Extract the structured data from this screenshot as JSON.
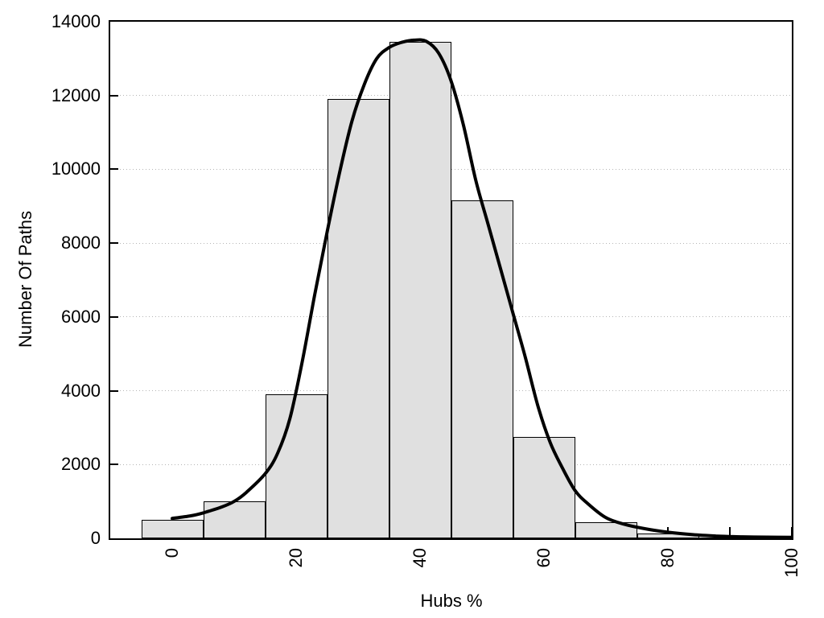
{
  "chart_data": {
    "type": "bar",
    "subtype": "histogram_with_density_curve",
    "title": "",
    "xlabel": "Hubs %",
    "ylabel": "Number Of Paths",
    "xlim": [
      -10,
      100
    ],
    "ylim": [
      0,
      14000
    ],
    "x_major_ticks": [
      0,
      20,
      40,
      60,
      80,
      100
    ],
    "x_minor_tick_step": 10,
    "x_tick_label_rotation_deg": -90,
    "y_ticks": [
      0,
      2000,
      4000,
      6000,
      8000,
      10000,
      12000,
      14000
    ],
    "grid": {
      "horizontal": true,
      "vertical": false,
      "style": "dotted",
      "at": [
        2000,
        4000,
        6000,
        8000,
        10000,
        12000
      ]
    },
    "legend": null,
    "bars": {
      "bin_width": 10,
      "centers": [
        0,
        10,
        20,
        30,
        40,
        50,
        60,
        70,
        80,
        90
      ],
      "values": [
        500,
        1000,
        3900,
        11900,
        13450,
        9150,
        2750,
        430,
        140,
        30
      ]
    },
    "density_curve": {
      "points": [
        [
          0,
          540
        ],
        [
          3,
          610
        ],
        [
          5,
          690
        ],
        [
          8,
          850
        ],
        [
          10,
          1000
        ],
        [
          12,
          1250
        ],
        [
          15,
          1750
        ],
        [
          17,
          2300
        ],
        [
          19,
          3250
        ],
        [
          21,
          4800
        ],
        [
          23,
          6600
        ],
        [
          25,
          8300
        ],
        [
          27,
          9900
        ],
        [
          29,
          11300
        ],
        [
          31,
          12300
        ],
        [
          33,
          13000
        ],
        [
          35,
          13300
        ],
        [
          37,
          13440
        ],
        [
          39,
          13500
        ],
        [
          41,
          13470
        ],
        [
          43,
          13150
        ],
        [
          45,
          12400
        ],
        [
          47,
          11200
        ],
        [
          49,
          9700
        ],
        [
          51,
          8500
        ],
        [
          53,
          7300
        ],
        [
          55,
          6100
        ],
        [
          57,
          4900
        ],
        [
          59,
          3600
        ],
        [
          61,
          2600
        ],
        [
          63,
          1900
        ],
        [
          65,
          1300
        ],
        [
          67,
          950
        ],
        [
          70,
          560
        ],
        [
          73,
          380
        ],
        [
          76,
          270
        ],
        [
          80,
          165
        ],
        [
          84,
          100
        ],
        [
          88,
          62
        ],
        [
          92,
          42
        ],
        [
          96,
          32
        ],
        [
          100,
          28
        ]
      ]
    },
    "colors": {
      "bar_fill": "#e0e0e0",
      "bar_border": "#000000",
      "curve": "#000000",
      "grid": "#b5b5b5",
      "axis": "#000000",
      "background": "#ffffff",
      "text": "#000000"
    }
  }
}
